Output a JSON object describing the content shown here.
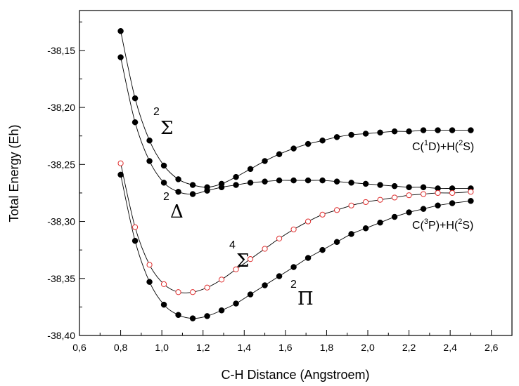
{
  "chart_data": {
    "type": "line",
    "title": "",
    "xlabel": "C-H Distance (Angstroem)",
    "ylabel": "Total Energy (Eh)",
    "xlim": [
      0.6,
      2.7
    ],
    "ylim": [
      -38.4,
      -38.115
    ],
    "xticks": [
      "0,6",
      "0,8",
      "1,0",
      "1,2",
      "1,4",
      "1,6",
      "1,8",
      "2,0",
      "2,2",
      "2,4",
      "2,6"
    ],
    "yticks": [
      "-38,15",
      "-38,20",
      "-38,25",
      "-38,30",
      "-38,35",
      "-38,40"
    ],
    "grid": false,
    "series": [
      {
        "name": "2Σ",
        "marker": "filled-circle",
        "color": "#000000",
        "x": [
          0.8,
          0.87,
          0.94,
          1.01,
          1.08,
          1.15,
          1.22,
          1.29,
          1.36,
          1.43,
          1.5,
          1.57,
          1.64,
          1.71,
          1.78,
          1.85,
          1.92,
          1.99,
          2.06,
          2.13,
          2.2,
          2.27,
          2.34,
          2.41,
          2.5
        ],
        "y": [
          -38.133,
          -38.192,
          -38.229,
          -38.251,
          -38.263,
          -38.268,
          -38.27,
          -38.267,
          -38.261,
          -38.254,
          -38.247,
          -38.241,
          -38.236,
          -38.232,
          -38.229,
          -38.226,
          -38.224,
          -38.223,
          -38.222,
          -38.221,
          -38.221,
          -38.22,
          -38.22,
          -38.22,
          -38.22
        ]
      },
      {
        "name": "2Δ",
        "marker": "filled-circle",
        "color": "#000000",
        "x": [
          0.8,
          0.87,
          0.94,
          1.01,
          1.08,
          1.15,
          1.22,
          1.29,
          1.36,
          1.43,
          1.5,
          1.57,
          1.64,
          1.71,
          1.78,
          1.85,
          1.92,
          1.99,
          2.06,
          2.13,
          2.2,
          2.27,
          2.34,
          2.41,
          2.5
        ],
        "y": [
          -38.156,
          -38.213,
          -38.247,
          -38.266,
          -38.274,
          -38.276,
          -38.273,
          -38.27,
          -38.268,
          -38.266,
          -38.265,
          -38.264,
          -38.264,
          -38.264,
          -38.264,
          -38.265,
          -38.266,
          -38.267,
          -38.268,
          -38.269,
          -38.27,
          -38.27,
          -38.271,
          -38.271,
          -38.271
        ]
      },
      {
        "name": "4Σ",
        "marker": "open-circle",
        "color": "#e03030",
        "x": [
          0.8,
          0.87,
          0.94,
          1.01,
          1.08,
          1.15,
          1.22,
          1.29,
          1.36,
          1.43,
          1.5,
          1.57,
          1.64,
          1.71,
          1.78,
          1.85,
          1.92,
          1.99,
          2.06,
          2.13,
          2.2,
          2.27,
          2.34,
          2.41,
          2.5
        ],
        "y": [
          -38.249,
          -38.305,
          -38.338,
          -38.355,
          -38.362,
          -38.362,
          -38.358,
          -38.351,
          -38.342,
          -38.333,
          -38.324,
          -38.315,
          -38.307,
          -38.3,
          -38.294,
          -38.29,
          -38.286,
          -38.283,
          -38.281,
          -38.279,
          -38.277,
          -38.276,
          -38.275,
          -38.275,
          -38.274
        ]
      },
      {
        "name": "2Π",
        "marker": "filled-circle",
        "color": "#000000",
        "x": [
          0.8,
          0.87,
          0.94,
          1.01,
          1.08,
          1.15,
          1.22,
          1.29,
          1.36,
          1.43,
          1.5,
          1.57,
          1.64,
          1.71,
          1.78,
          1.85,
          1.92,
          1.99,
          2.06,
          2.13,
          2.2,
          2.27,
          2.34,
          2.41,
          2.5
        ],
        "y": [
          -38.259,
          -38.317,
          -38.353,
          -38.373,
          -38.382,
          -38.385,
          -38.383,
          -38.378,
          -38.372,
          -38.364,
          -38.356,
          -38.348,
          -38.34,
          -38.332,
          -38.325,
          -38.318,
          -38.311,
          -38.306,
          -38.301,
          -38.296,
          -38.292,
          -38.289,
          -38.286,
          -38.284,
          -38.282
        ]
      }
    ],
    "state_labels": [
      {
        "id": "sigma2",
        "sup": "2",
        "symbol": "Σ"
      },
      {
        "id": "delta2",
        "sup": "2",
        "symbol": "Δ"
      },
      {
        "id": "sigma4",
        "sup": "4",
        "symbol": "Σ"
      },
      {
        "id": "pi2",
        "sup": "2",
        "symbol": "Π"
      }
    ],
    "asymptote_labels": [
      {
        "id": "c1d",
        "a": "C(",
        "sup1": "1",
        "b": "D)+H(",
        "sup2": "2",
        "c": "S)"
      },
      {
        "id": "c3p",
        "a": "C(",
        "sup1": "3",
        "b": "P)+H(",
        "sup2": "2",
        "c": "S)"
      }
    ]
  }
}
